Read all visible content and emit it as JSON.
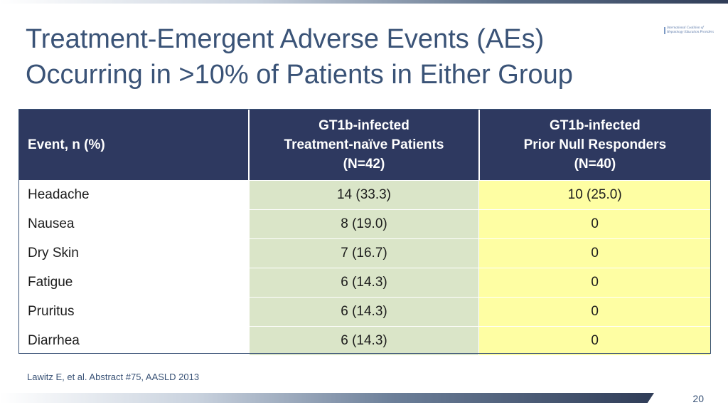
{
  "slide": {
    "title_line1": "Treatment-Emergent Adverse Events (AEs)",
    "title_line2": "Occurring in >10% of Patients in Either Group",
    "logo_text_line1": "International Coalition of",
    "logo_text_line2": "Hepatology Education Providers",
    "citation": "Lawitz E, et al. Abstract #75, AASLD 2013",
    "page_number": "20"
  },
  "table": {
    "headers": {
      "event": "Event, n (%)",
      "naive": [
        "GT1b-infected",
        "Treatment-naïve Patients",
        "(N=42)"
      ],
      "null_responders": [
        "GT1b-infected",
        "Prior Null Responders",
        "(N=40)"
      ]
    },
    "rows": [
      {
        "event": "Headache",
        "naive": "14 (33.3)",
        "null_responders": "10 (25.0)"
      },
      {
        "event": "Nausea",
        "naive": "8 (19.0)",
        "null_responders": "0"
      },
      {
        "event": "Dry Skin",
        "naive": "7 (16.7)",
        "null_responders": "0"
      },
      {
        "event": "Fatigue",
        "naive": "6 (14.3)",
        "null_responders": "0"
      },
      {
        "event": "Pruritus",
        "naive": "6 (14.3)",
        "null_responders": "0"
      },
      {
        "event": "Diarrhea",
        "naive": "6 (14.3)",
        "null_responders": "0"
      }
    ]
  },
  "colors": {
    "title": "#3a5377",
    "header_bg": "#2e3960",
    "naive_column_bg": "#dae5c8",
    "null_column_bg": "#fefea3"
  }
}
